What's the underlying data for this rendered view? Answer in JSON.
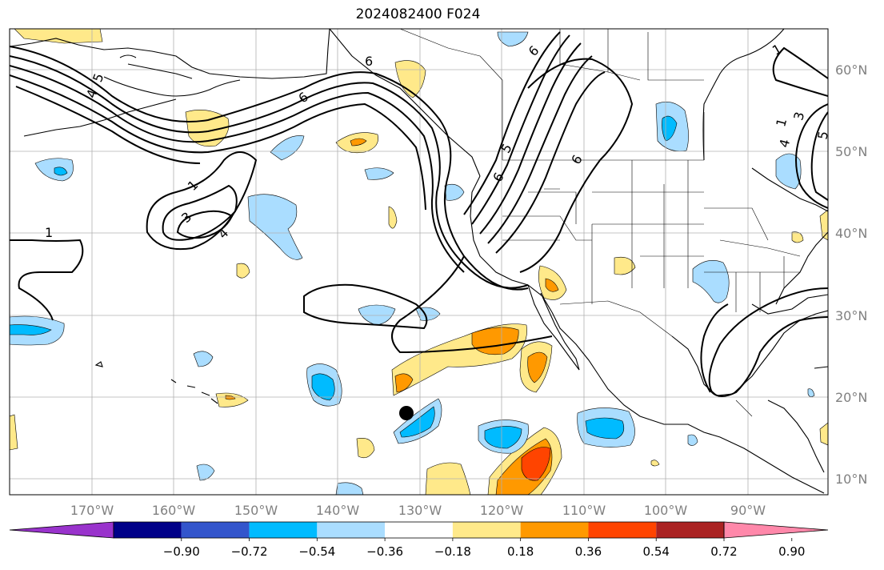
{
  "title": "2024082400 F024",
  "lon_ticks": [
    "170°W",
    "160°W",
    "150°W",
    "140°W",
    "130°W",
    "120°W",
    "110°W",
    "100°W",
    "90°W"
  ],
  "lat_ticks": [
    "60°N",
    "50°N",
    "40°N",
    "30°N",
    "20°N",
    "10°N"
  ],
  "colorbar": {
    "labels": [
      "−0.90",
      "−0.72",
      "−0.54",
      "−0.36",
      "−0.18",
      "0.18",
      "0.36",
      "0.54",
      "0.72",
      "0.90"
    ],
    "colors": {
      "under": "#9933cc",
      "bins": [
        "#000088",
        "#3355cc",
        "#00bbff",
        "#aaddff",
        "#ffffff",
        "#ffe98a",
        "#ff9900",
        "#ff4400",
        "#aa2222"
      ],
      "over": "#ff88aa"
    }
  },
  "contour_labels": {
    "one": "1",
    "three": "3",
    "four": "4",
    "five": "5",
    "six": "6"
  },
  "marker": "storm-center"
}
